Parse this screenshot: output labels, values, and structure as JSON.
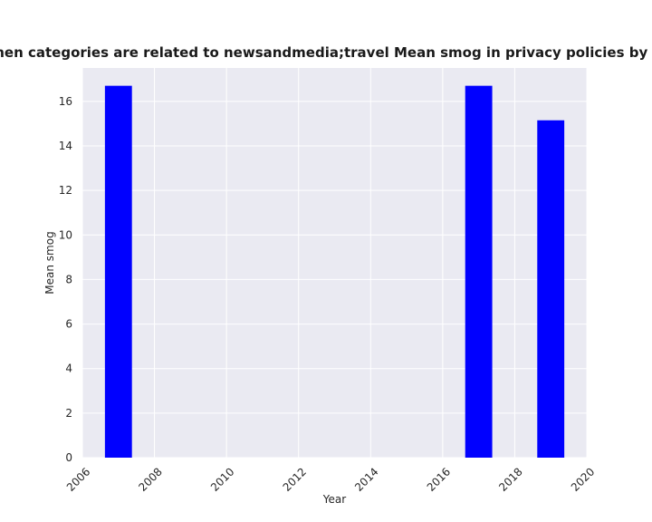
{
  "chart_data": {
    "type": "bar",
    "title": "when categories are related to newsandmedia;travel Mean smog in privacy policies by Year",
    "xlabel": "Year",
    "ylabel": "Mean smog",
    "xlim": [
      2006,
      2020
    ],
    "ylim": [
      0,
      17.5
    ],
    "x_ticks": [
      2006,
      2008,
      2010,
      2012,
      2014,
      2016,
      2018,
      2020
    ],
    "y_ticks": [
      0,
      2,
      4,
      6,
      8,
      10,
      12,
      14,
      16
    ],
    "bar_width_years": 0.75,
    "grid": true,
    "legend": "none",
    "colors": {
      "bar": "#0000ff",
      "plot_background": "#eaeaf2",
      "grid": "#ffffff"
    },
    "x": [
      2007,
      2017,
      2019
    ],
    "values": [
      16.7,
      16.7,
      15.15
    ]
  }
}
